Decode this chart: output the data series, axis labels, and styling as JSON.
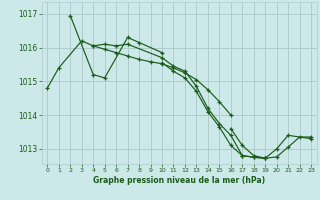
{
  "bg_color": "#cce8e8",
  "grid_color": "#b0cccc",
  "line_color": "#1a5c1a",
  "marker_color": "#1a5c1a",
  "xlabel": "Graphe pression niveau de la mer (hPa)",
  "xlabel_color": "#1a5c1a",
  "ylabel_color": "#1a5c1a",
  "tick_color": "#1a5c1a",
  "xlim": [
    -0.5,
    23.5
  ],
  "ylim": [
    1012.55,
    1017.35
  ],
  "yticks": [
    1013,
    1014,
    1015,
    1016,
    1017
  ],
  "xticks": [
    0,
    1,
    2,
    3,
    4,
    5,
    6,
    7,
    8,
    9,
    10,
    11,
    12,
    13,
    14,
    15,
    16,
    17,
    18,
    19,
    20,
    21,
    22,
    23
  ],
  "series": [
    {
      "x": [
        0,
        1,
        3,
        4,
        5,
        6,
        7,
        10,
        11,
        12,
        13,
        14,
        15,
        16,
        17,
        18,
        19
      ],
      "y": [
        1014.8,
        1015.4,
        1016.2,
        1016.05,
        1016.1,
        1016.05,
        1016.1,
        1015.7,
        1015.45,
        1015.3,
        1014.85,
        1014.2,
        1013.75,
        1013.4,
        1012.8,
        1012.75,
        1012.72
      ]
    },
    {
      "x": [
        2,
        4,
        5,
        7,
        8,
        10
      ],
      "y": [
        1016.95,
        1015.2,
        1015.1,
        1016.3,
        1016.15,
        1015.85
      ]
    },
    {
      "x": [
        4,
        5,
        6,
        7,
        8,
        9,
        10,
        11,
        12,
        13,
        14,
        15,
        16
      ],
      "y": [
        1016.05,
        1015.95,
        1015.85,
        1015.75,
        1015.65,
        1015.58,
        1015.52,
        1015.4,
        1015.25,
        1015.05,
        1014.75,
        1014.4,
        1014.0
      ]
    },
    {
      "x": [
        10,
        11,
        12,
        13,
        14,
        15,
        16,
        17,
        18,
        19,
        20,
        21,
        23
      ],
      "y": [
        1015.55,
        1015.3,
        1015.1,
        1014.7,
        1014.1,
        1013.65,
        1013.1,
        1012.8,
        1012.75,
        1012.72,
        1013.0,
        1013.4,
        1013.3
      ]
    },
    {
      "x": [
        16,
        17,
        18,
        19,
        20,
        21,
        22,
        23
      ],
      "y": [
        1013.6,
        1013.1,
        1012.8,
        1012.72,
        1012.76,
        1013.05,
        1013.35,
        1013.35
      ]
    }
  ]
}
